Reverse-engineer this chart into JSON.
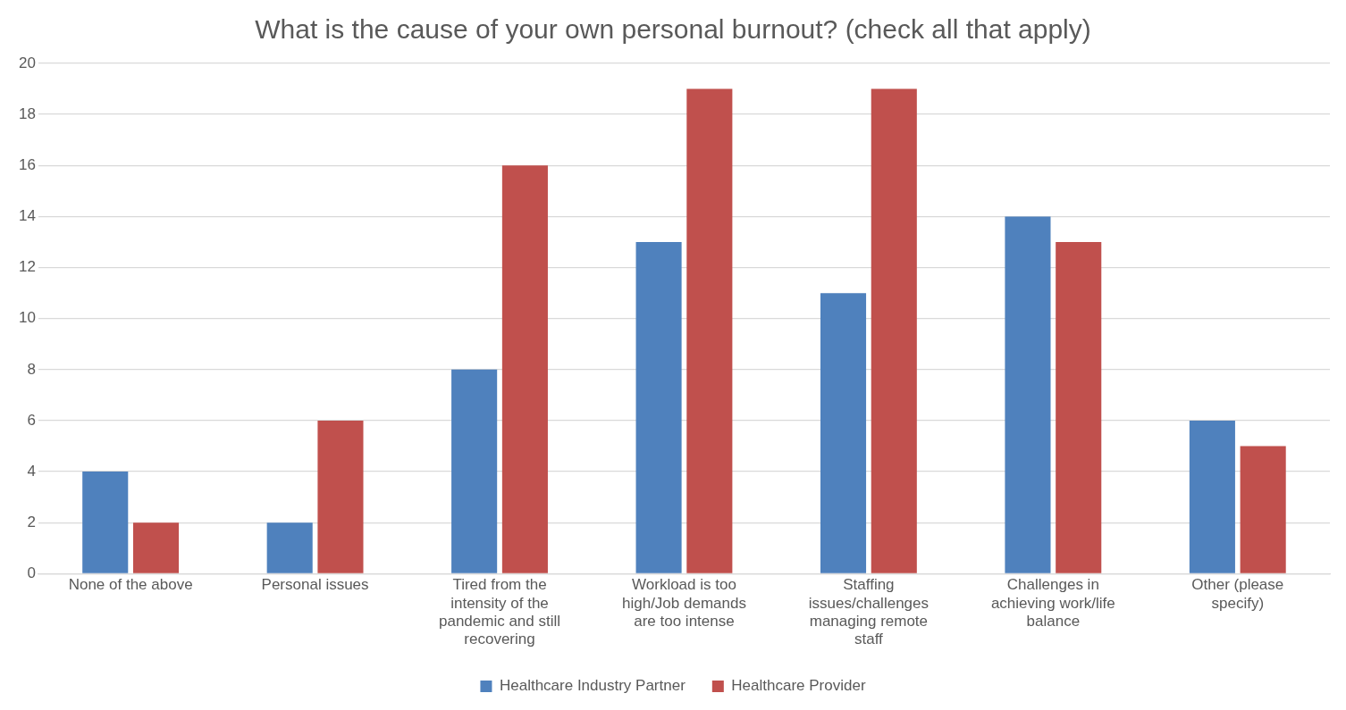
{
  "chart_data": {
    "type": "bar",
    "title": "What is the cause of your own personal burnout? (check all that apply)",
    "categories": [
      "None of the above",
      "Personal issues",
      "Tired from the intensity of the pandemic and still recovering",
      "Workload is too high/Job demands are too intense",
      "Staffing issues/challenges managing remote staff",
      "Challenges in achieving work/life balance",
      "Other (please specify)"
    ],
    "series": [
      {
        "name": "Healthcare Industry Partner",
        "color": "#4f81bd",
        "values": [
          4,
          2,
          8,
          13,
          11,
          14,
          6
        ]
      },
      {
        "name": "Healthcare Provider",
        "color": "#c0504d",
        "values": [
          2,
          6,
          16,
          19,
          19,
          13,
          5
        ]
      }
    ],
    "ylim": [
      0,
      20
    ],
    "yticks": [
      0,
      2,
      4,
      6,
      8,
      10,
      12,
      14,
      16,
      18,
      20
    ],
    "grid": "y",
    "legend": "bottom"
  }
}
